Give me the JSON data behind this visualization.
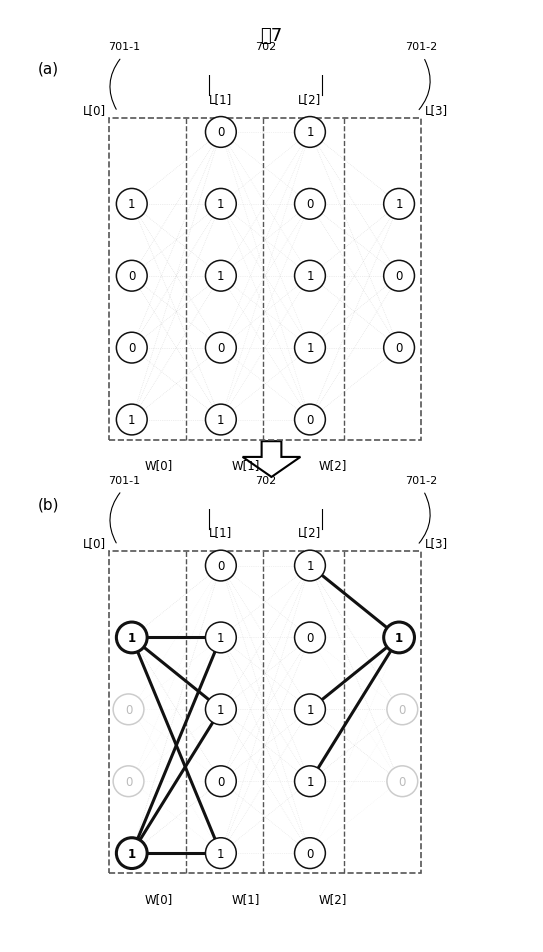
{
  "title": "围7",
  "panel_a_label": "(a)",
  "panel_b_label": "(b)",
  "L0_values": [
    1,
    0,
    0,
    1
  ],
  "L1_values": [
    0,
    1,
    1,
    0,
    1
  ],
  "L2_values": [
    1,
    0,
    1,
    1,
    0
  ],
  "L3_values": [
    1,
    0,
    0
  ],
  "bg_color": "#ffffff",
  "label_701_1": "701-1",
  "label_701_2": "701-2",
  "label_702": "702",
  "label_L0": "L[0]",
  "label_L1": "L[1]",
  "label_L2": "L[2]",
  "label_L3": "L[3]",
  "label_W0": "W[0]",
  "label_W1": "W[1]",
  "label_W2": "W[2]"
}
